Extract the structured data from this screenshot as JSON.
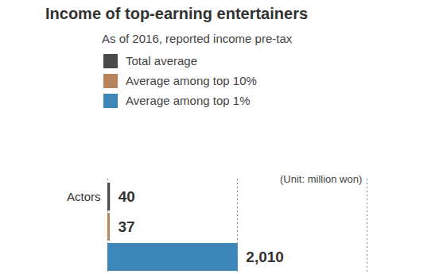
{
  "chart_data": {
    "type": "bar",
    "title": "Income of top-earning entertainers",
    "subtitle": "As of 2016, reported income pre-tax",
    "annotations": [
      "(Unit: million won)"
    ],
    "orientation": "horizontal",
    "categories": [
      "Actors"
    ],
    "series": [
      {
        "name": "Total average",
        "color": "#4a4a4a",
        "values": [
          40
        ]
      },
      {
        "name": "Average among top 10%",
        "color": "#b8845c",
        "values": [
          37
        ]
      },
      {
        "name": "Average among top 1%",
        "color": "#3d86b8",
        "values": [
          2010
        ],
        "value_labels": [
          "2,010"
        ]
      }
    ],
    "xlim": [
      0,
      4000
    ],
    "xticks": [
      0,
      2000,
      4000
    ],
    "grid": true,
    "data_labels": true,
    "tick_labels": "y",
    "legend": "top-left"
  }
}
